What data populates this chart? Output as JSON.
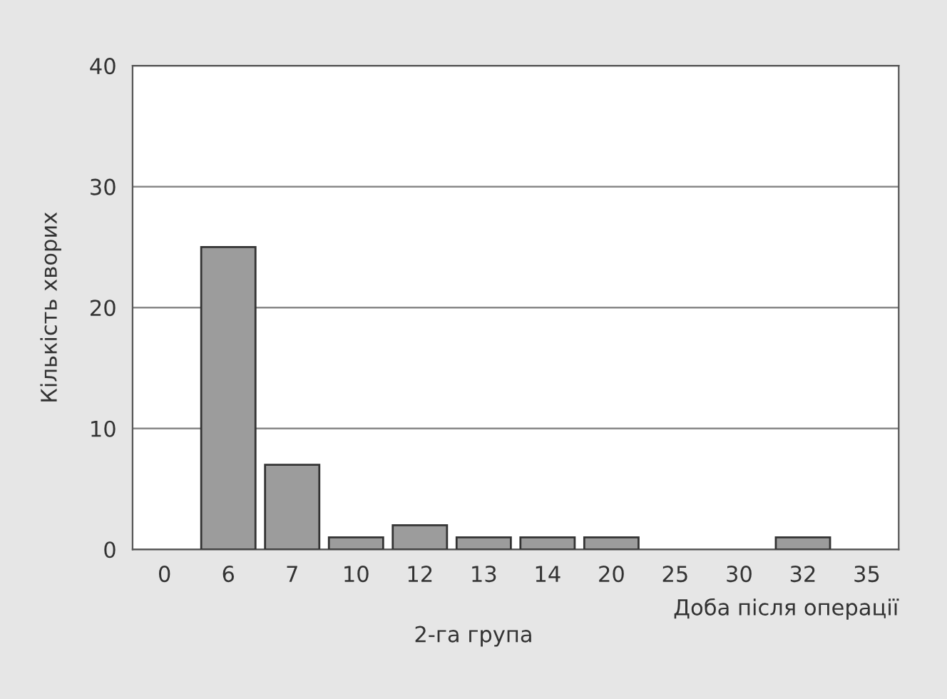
{
  "chart_data": {
    "type": "bar",
    "title": "2-га група",
    "xlabel": "Доба після операції",
    "ylabel": "Кількість хворих",
    "categories": [
      "0",
      "6",
      "7",
      "10",
      "12",
      "13",
      "14",
      "20",
      "25",
      "30",
      "32",
      "35"
    ],
    "values": [
      null,
      25,
      7,
      1,
      2,
      1,
      1,
      1,
      null,
      null,
      1,
      null
    ],
    "color": "#9c9c9c",
    "ylim": [
      0,
      40
    ],
    "yticks": [
      0,
      10,
      20,
      30,
      40
    ],
    "grid": "y",
    "legend": false
  }
}
